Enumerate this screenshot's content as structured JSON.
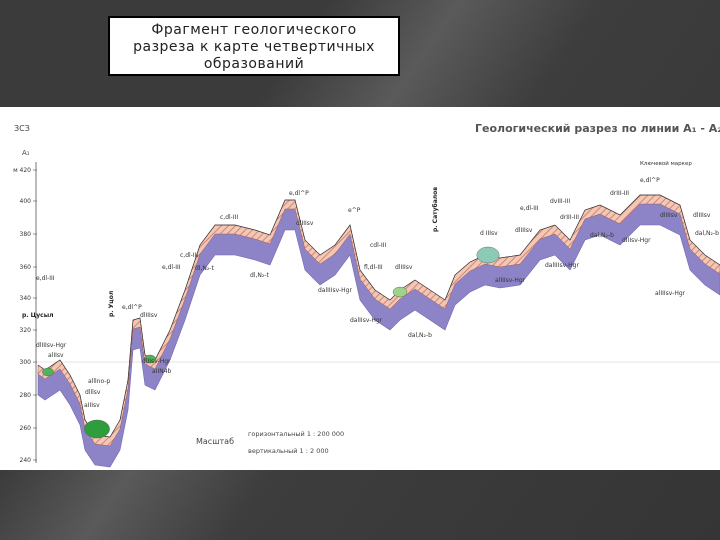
{
  "header": {
    "title_lines": [
      "Фрагмент геологического",
      "разреза к карте четвертичных",
      "образований"
    ]
  },
  "section": {
    "direction": "ЗСЗ",
    "start": "A₁",
    "title": "Геологический разрез по линии A₁ - A₂",
    "legend_note": "Ключевой маркер",
    "elevations": [
      "м 420",
      "400",
      "380",
      "360",
      "340",
      "320",
      "300",
      "280",
      "260",
      "240"
    ],
    "rivers": [
      "р. Цусыл",
      "р. Уцол",
      "р. Сатубалов"
    ],
    "labels": [
      "e,dl-III",
      "dlIIIsv-Hgr",
      "alIIsv",
      "alllno-p",
      "dlllsv",
      "aIIIsv",
      "dlIIsv-Hgr",
      "aIIN4b",
      "e,dl^P",
      "dlIIIsv",
      "c,dl-III",
      "e,dl-III",
      "c,dl-III",
      "dl,N₂-t",
      "e,dl^P",
      "dlIIIsv",
      "dl,N₂-t",
      "dalIIIsv-Hgr",
      "e^P",
      "cdl-III",
      "fl,dl-III",
      "dlIIIsv",
      "dal,N₂-b",
      "dalIIsv-Hgr",
      "d IIIsv",
      "dlIIIsv",
      "e,dl-III",
      "dvIII-III",
      "drIII-III",
      "dal,N₂-b",
      "dalIIIsv-Hgr",
      "e,dl^P",
      "drIII-III",
      "dlIIIsv",
      "dlIIIsv",
      "dal,N₂-b",
      "alIIIsv-Hgr",
      "alIIIsv-Hgr",
      "dIIIsv-Hgr"
    ],
    "scale": {
      "label": "Масштаб",
      "horizontal": "горизонтальный  1 : 200 000",
      "vertical": "вертикальный  1 : 2 000"
    }
  }
}
